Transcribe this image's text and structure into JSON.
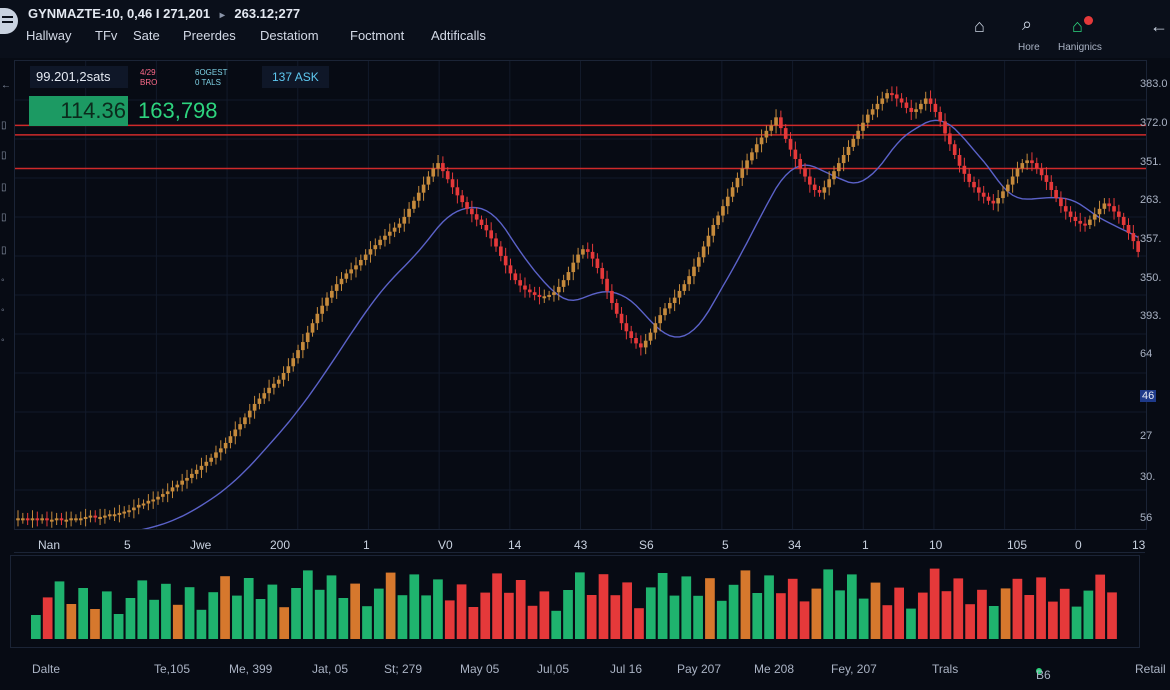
{
  "header": {
    "ticker": "GYNMAZTE-10, 0,46 I 271,201",
    "ticker_value": "263.12;277",
    "menu": [
      "Hallway",
      "TFv",
      "Sate",
      "Preerdes",
      "Destatiom",
      "Foctmont",
      "Adtificalls"
    ],
    "icon_labels": {
      "home": "Hore",
      "notifications": "Hanignics"
    }
  },
  "panel": {
    "info": "99.201,2sats",
    "red_label": [
      "4/29",
      "BRO"
    ],
    "teal_label": [
      "6OGEST",
      "0 TALS"
    ],
    "ask": "137 ASK",
    "price": "114.36",
    "volume": "163,798"
  },
  "price_axis": [
    "383.0",
    "372.0",
    "351.",
    "263.",
    "357.",
    "350.",
    "393.",
    "64",
    "46",
    "27",
    "30.",
    "56"
  ],
  "x_axis_labels": [
    "Nan",
    "5",
    "Jwe",
    "200",
    "1",
    "V0",
    "14",
    "43",
    "S6",
    "5",
    "34",
    "1",
    "10",
    "105",
    "0",
    "13"
  ],
  "date_axis": [
    "Dalte",
    "Te,105",
    "Me, 399",
    "Jat, 05",
    "St; 279",
    "May 05",
    "Jul,05",
    "Jul 16",
    "Pay 207",
    "Me 208",
    "Fey, 207",
    "Trals",
    "B6",
    "Retail"
  ],
  "colors": {
    "up": "#c58a3c",
    "down": "#e5393a",
    "volume_up": "#1fb36e",
    "volume_down": "#e5393a",
    "volume_orange": "#d6782d",
    "ma": "#5b62c9",
    "level_line": "#cf2a2a"
  },
  "chart_data": {
    "type": "candlestick",
    "y_range": [
      56,
      383
    ],
    "levels": [
      350,
      343,
      318
    ],
    "close": [
      58,
      58,
      57,
      58,
      57,
      58,
      57,
      57,
      58,
      57,
      57,
      58,
      58,
      58,
      59,
      60,
      59,
      59,
      60,
      61,
      61,
      62,
      63,
      64,
      66,
      68,
      69,
      71,
      72,
      74,
      76,
      78,
      81,
      83,
      86,
      88,
      91,
      94,
      97,
      100,
      103,
      107,
      110,
      114,
      119,
      124,
      128,
      133,
      138,
      143,
      147,
      151,
      155,
      158,
      161,
      166,
      171,
      177,
      183,
      189,
      196,
      203,
      210,
      216,
      222,
      227,
      232,
      236,
      240,
      243,
      246,
      250,
      254,
      258,
      261,
      265,
      268,
      271,
      274,
      277,
      282,
      288,
      294,
      300,
      306,
      312,
      318,
      322,
      316,
      310,
      304,
      298,
      293,
      288,
      284,
      280,
      276,
      272,
      266,
      260,
      253,
      246,
      240,
      235,
      231,
      228,
      226,
      224,
      223,
      223,
      224,
      226,
      230,
      235,
      241,
      248,
      254,
      258,
      256,
      251,
      244,
      236,
      227,
      218,
      210,
      203,
      197,
      192,
      188,
      185,
      190,
      196,
      203,
      209,
      214,
      218,
      222,
      227,
      232,
      238,
      245,
      252,
      260,
      268,
      276,
      283,
      290,
      297,
      304,
      311,
      318,
      324,
      330,
      336,
      341,
      346,
      350,
      356,
      348,
      340,
      332,
      325,
      318,
      312,
      306,
      302,
      300,
      304,
      310,
      316,
      322,
      328,
      334,
      340,
      346,
      352,
      358,
      362,
      366,
      370,
      374,
      373,
      370,
      367,
      363,
      360,
      362,
      366,
      370,
      366,
      360,
      353,
      344,
      336,
      328,
      320,
      314,
      308,
      304,
      300,
      297,
      294,
      292,
      296,
      301,
      306,
      312,
      318,
      322,
      324,
      322,
      318,
      313,
      308,
      302,
      296,
      290,
      286,
      282,
      279,
      277,
      276,
      280,
      284,
      288,
      292,
      290,
      286,
      282,
      276,
      270,
      264,
      256
    ]
  }
}
